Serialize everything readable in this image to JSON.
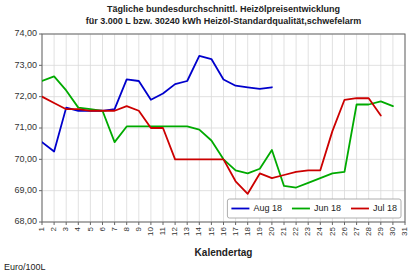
{
  "chart_data": {
    "type": "line",
    "title": "Tägliche bundesdurchschnittl. Heizölpreisentwicklung",
    "subtitle": "für 3.000 L bzw. 30240 kWh Heizöl-Standardqualität,schwefelarm",
    "xlabel": "Kalendertag",
    "ylabel": "Euro/100L",
    "x": [
      1,
      2,
      3,
      4,
      5,
      6,
      7,
      8,
      9,
      10,
      11,
      12,
      13,
      14,
      15,
      16,
      17,
      18,
      19,
      20,
      21,
      22,
      23,
      24,
      25,
      26,
      27,
      28,
      29,
      30,
      31
    ],
    "xlim": [
      1,
      31
    ],
    "xticks": [
      1,
      2,
      3,
      4,
      5,
      6,
      7,
      8,
      9,
      10,
      11,
      12,
      13,
      14,
      15,
      16,
      17,
      18,
      19,
      20,
      21,
      22,
      23,
      24,
      25,
      26,
      27,
      28,
      29,
      30,
      31
    ],
    "ylim": [
      68.0,
      74.0
    ],
    "yticks": [
      {
        "value": 68.0,
        "label": "68,00"
      },
      {
        "value": 69.0,
        "label": "69,00"
      },
      {
        "value": 70.0,
        "label": "70,00"
      },
      {
        "value": 71.0,
        "label": "71,00"
      },
      {
        "value": 72.0,
        "label": "72,00"
      },
      {
        "value": 73.0,
        "label": "73,00"
      },
      {
        "value": 74.0,
        "label": "74,00"
      }
    ],
    "grid": true,
    "legend": "lower right",
    "series": [
      {
        "name": "Aug 18",
        "color": "#0000cc",
        "values": [
          70.55,
          70.25,
          71.65,
          71.55,
          71.55,
          71.55,
          71.6,
          72.55,
          72.5,
          71.9,
          72.1,
          72.4,
          72.5,
          73.3,
          73.2,
          72.55,
          72.35,
          72.3,
          72.25,
          72.3,
          null,
          null,
          null,
          null,
          null,
          null,
          null,
          null,
          null,
          null,
          null
        ]
      },
      {
        "name": "Jun 18",
        "color": "#00aa00",
        "values": [
          72.5,
          72.65,
          72.2,
          71.65,
          71.6,
          71.55,
          70.55,
          71.05,
          71.05,
          71.05,
          71.05,
          71.05,
          71.05,
          70.95,
          70.6,
          70.0,
          69.65,
          69.55,
          69.7,
          70.3,
          69.15,
          69.1,
          69.25,
          69.4,
          69.55,
          69.6,
          71.75,
          71.75,
          71.85,
          71.7,
          null
        ]
      },
      {
        "name": "Jul 18",
        "color": "#cc0000",
        "values": [
          72.0,
          71.8,
          71.6,
          71.6,
          71.55,
          71.55,
          71.55,
          71.7,
          71.55,
          71.0,
          71.0,
          70.0,
          70.0,
          70.0,
          70.0,
          70.0,
          69.3,
          68.9,
          69.55,
          69.4,
          69.5,
          69.6,
          69.65,
          69.65,
          70.9,
          71.9,
          71.95,
          71.95,
          71.4,
          null,
          null
        ]
      }
    ]
  }
}
